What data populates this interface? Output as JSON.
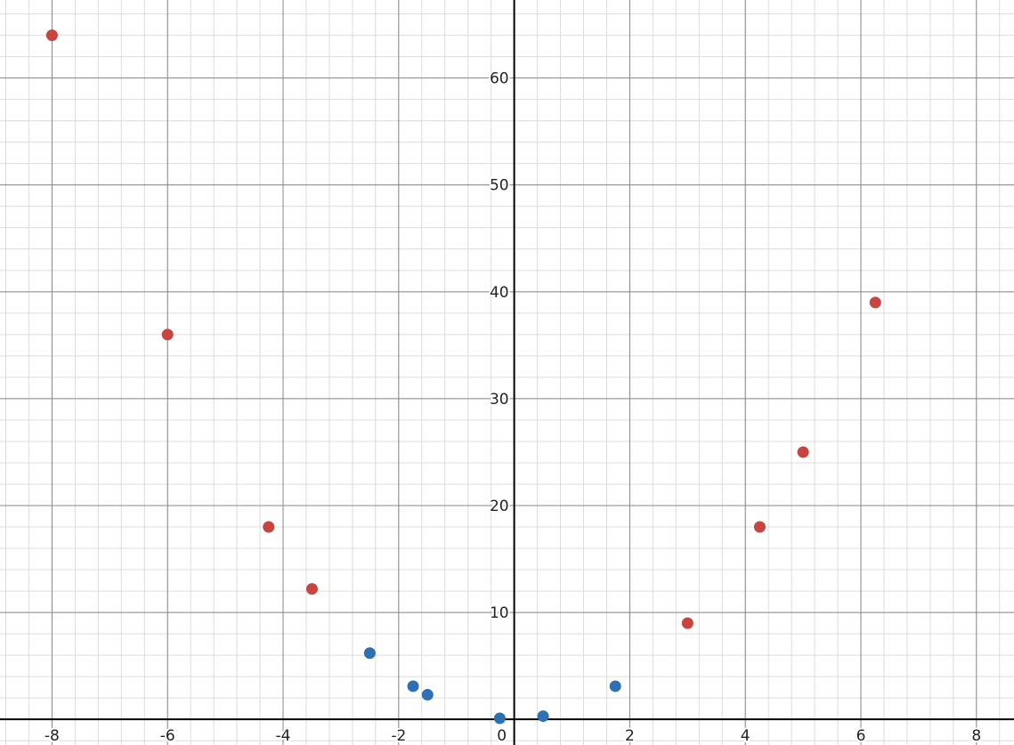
{
  "chart_data": {
    "type": "scatter",
    "title": "",
    "xlabel": "",
    "ylabel": "",
    "xlim": [
      -8.9,
      8.65
    ],
    "ylim": [
      -2.4,
      67.3
    ],
    "grid": true,
    "minor_grid": true,
    "x_ticks": [
      -8,
      -6,
      -4,
      -2,
      0,
      2,
      4,
      6,
      8
    ],
    "y_ticks": [
      10,
      20,
      30,
      40,
      50,
      60
    ],
    "x_tick_labels": [
      "-8",
      "-6",
      "-4",
      "-2",
      "0",
      "2",
      "4",
      "6",
      "8"
    ],
    "y_tick_labels": [
      "10",
      "20",
      "30",
      "40",
      "50",
      "60"
    ],
    "series": [
      {
        "color": "#c74440",
        "points": [
          {
            "x": -8,
            "y": 64
          },
          {
            "x": -6,
            "y": 36
          },
          {
            "x": -4.25,
            "y": 18
          },
          {
            "x": -3.5,
            "y": 12.2
          },
          {
            "x": 3,
            "y": 9
          },
          {
            "x": 4.25,
            "y": 18
          },
          {
            "x": 5,
            "y": 25
          },
          {
            "x": 6.25,
            "y": 39
          }
        ]
      },
      {
        "color": "#2d70b3",
        "points": [
          {
            "x": -2.5,
            "y": 6.2
          },
          {
            "x": -1.75,
            "y": 3.1
          },
          {
            "x": -1.5,
            "y": 2.3
          },
          {
            "x": -0.25,
            "y": 0.1
          },
          {
            "x": 0.5,
            "y": 0.3
          },
          {
            "x": 1.75,
            "y": 3.1
          }
        ]
      }
    ]
  }
}
